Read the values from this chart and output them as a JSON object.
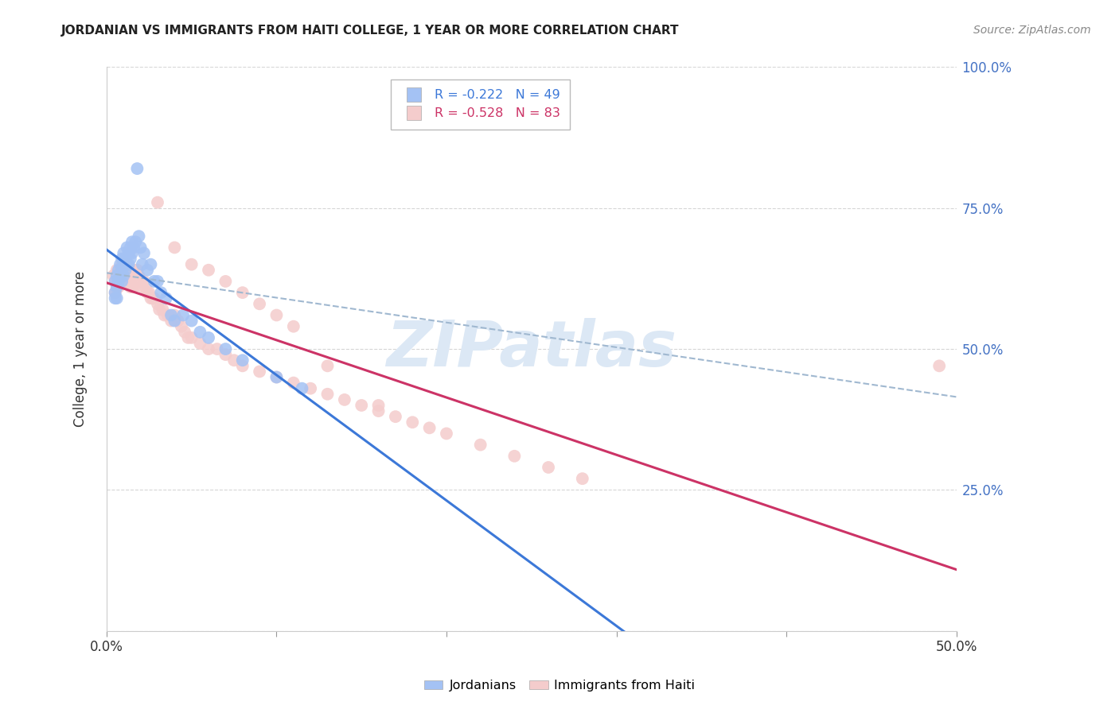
{
  "title": "JORDANIAN VS IMMIGRANTS FROM HAITI COLLEGE, 1 YEAR OR MORE CORRELATION CHART",
  "source": "Source: ZipAtlas.com",
  "ylabel": "College, 1 year or more",
  "x_min": 0.0,
  "x_max": 0.5,
  "y_min": 0.0,
  "y_max": 1.0,
  "x_ticks": [
    0.0,
    0.1,
    0.2,
    0.3,
    0.4,
    0.5
  ],
  "x_tick_labels": [
    "0.0%",
    "",
    "",
    "",
    "",
    "50.0%"
  ],
  "y_ticks": [
    0.0,
    0.25,
    0.5,
    0.75,
    1.0
  ],
  "y_tick_labels": [
    "",
    "25.0%",
    "50.0%",
    "75.0%",
    "100.0%"
  ],
  "jordanians_scatter_color": "#a4c2f4",
  "haiti_scatter_color": "#f4cccc",
  "jordanians_line_color": "#3c78d8",
  "haiti_line_color": "#cc3366",
  "dashed_line_color": "#a0b8d0",
  "watermark_color": "#dce8f5",
  "jordanians_x": [
    0.005,
    0.005,
    0.005,
    0.006,
    0.006,
    0.006,
    0.007,
    0.007,
    0.008,
    0.008,
    0.009,
    0.009,
    0.009,
    0.01,
    0.01,
    0.01,
    0.011,
    0.011,
    0.012,
    0.012,
    0.013,
    0.013,
    0.014,
    0.014,
    0.015,
    0.015,
    0.016,
    0.017,
    0.018,
    0.019,
    0.02,
    0.021,
    0.022,
    0.024,
    0.026,
    0.028,
    0.03,
    0.032,
    0.035,
    0.038,
    0.04,
    0.045,
    0.05,
    0.055,
    0.06,
    0.07,
    0.08,
    0.1,
    0.115
  ],
  "jordanians_y": [
    0.62,
    0.6,
    0.59,
    0.63,
    0.61,
    0.59,
    0.64,
    0.62,
    0.65,
    0.63,
    0.66,
    0.64,
    0.62,
    0.67,
    0.65,
    0.63,
    0.66,
    0.64,
    0.68,
    0.65,
    0.67,
    0.65,
    0.68,
    0.66,
    0.69,
    0.67,
    0.68,
    0.69,
    0.82,
    0.7,
    0.68,
    0.65,
    0.67,
    0.64,
    0.65,
    0.62,
    0.62,
    0.6,
    0.59,
    0.56,
    0.55,
    0.56,
    0.55,
    0.53,
    0.52,
    0.5,
    0.48,
    0.45,
    0.43
  ],
  "haiti_x": [
    0.004,
    0.005,
    0.005,
    0.006,
    0.006,
    0.007,
    0.007,
    0.008,
    0.008,
    0.009,
    0.009,
    0.01,
    0.01,
    0.011,
    0.011,
    0.012,
    0.012,
    0.013,
    0.013,
    0.014,
    0.014,
    0.015,
    0.015,
    0.016,
    0.016,
    0.017,
    0.018,
    0.019,
    0.02,
    0.021,
    0.022,
    0.023,
    0.024,
    0.025,
    0.026,
    0.027,
    0.028,
    0.03,
    0.031,
    0.033,
    0.034,
    0.036,
    0.038,
    0.04,
    0.042,
    0.044,
    0.046,
    0.048,
    0.05,
    0.055,
    0.06,
    0.065,
    0.07,
    0.075,
    0.08,
    0.09,
    0.1,
    0.11,
    0.12,
    0.13,
    0.14,
    0.15,
    0.16,
    0.17,
    0.18,
    0.19,
    0.2,
    0.22,
    0.24,
    0.26,
    0.28,
    0.03,
    0.04,
    0.05,
    0.06,
    0.07,
    0.08,
    0.09,
    0.1,
    0.11,
    0.13,
    0.16,
    0.49
  ],
  "haiti_y": [
    0.63,
    0.62,
    0.6,
    0.64,
    0.61,
    0.63,
    0.61,
    0.64,
    0.62,
    0.65,
    0.62,
    0.65,
    0.63,
    0.64,
    0.62,
    0.65,
    0.62,
    0.64,
    0.62,
    0.64,
    0.61,
    0.63,
    0.61,
    0.64,
    0.61,
    0.63,
    0.64,
    0.63,
    0.62,
    0.61,
    0.62,
    0.61,
    0.6,
    0.6,
    0.59,
    0.59,
    0.59,
    0.58,
    0.57,
    0.57,
    0.56,
    0.56,
    0.55,
    0.56,
    0.55,
    0.54,
    0.53,
    0.52,
    0.52,
    0.51,
    0.5,
    0.5,
    0.49,
    0.48,
    0.47,
    0.46,
    0.45,
    0.44,
    0.43,
    0.42,
    0.41,
    0.4,
    0.39,
    0.38,
    0.37,
    0.36,
    0.35,
    0.33,
    0.31,
    0.29,
    0.27,
    0.76,
    0.68,
    0.65,
    0.64,
    0.62,
    0.6,
    0.58,
    0.56,
    0.54,
    0.47,
    0.4,
    0.47
  ],
  "background_color": "#ffffff",
  "grid_color": "#cccccc"
}
